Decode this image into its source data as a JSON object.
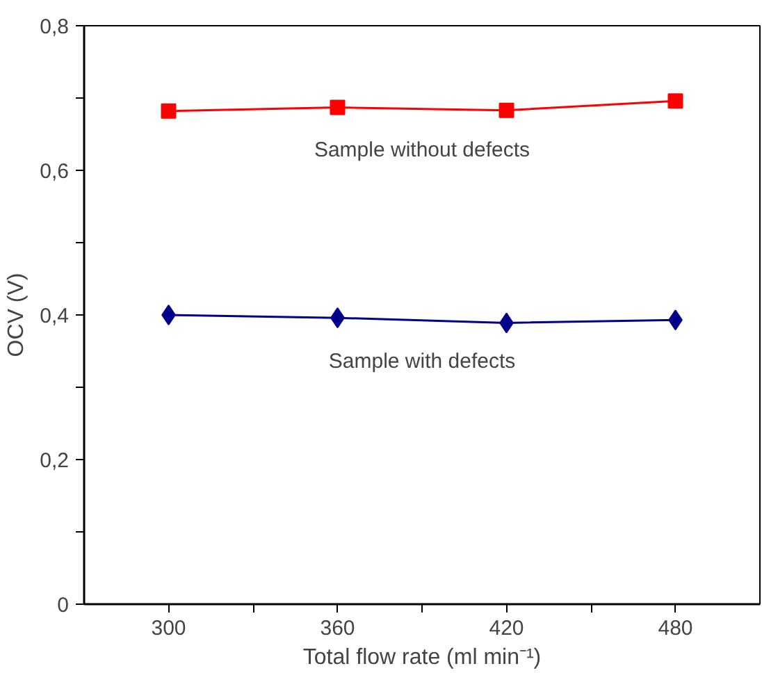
{
  "chart_data": {
    "type": "line",
    "xlabel": "Total flow rate (ml min⁻¹)",
    "ylabel": "OCV (V)",
    "x": [
      300,
      360,
      420,
      480
    ],
    "series": [
      {
        "name": "Sample without defects",
        "color": "#ff0000",
        "marker": "square",
        "values": [
          0.682,
          0.687,
          0.683,
          0.696
        ]
      },
      {
        "name": "Sample with defects",
        "color": "#00008b",
        "marker": "diamond",
        "values": [
          0.4,
          0.396,
          0.389,
          0.393
        ]
      }
    ],
    "xlim": [
      270,
      510
    ],
    "xticks": [
      300,
      {
        "value": 330,
        "label": null
      },
      360,
      {
        "value": 390,
        "label": null
      },
      420,
      {
        "value": 450,
        "label": null
      },
      480
    ],
    "ylim": [
      0,
      0.8
    ],
    "yticks": [
      0,
      {
        "value": 0.1,
        "label": null
      },
      {
        "value": 0.2,
        "label": "0,2"
      },
      {
        "value": 0.3,
        "label": null
      },
      {
        "value": 0.4,
        "label": "0,4"
      },
      {
        "value": 0.5,
        "label": null
      },
      {
        "value": 0.6,
        "label": "0,6"
      },
      {
        "value": 0.7,
        "label": null
      },
      {
        "value": 0.8,
        "label": "0,8"
      }
    ],
    "grid": false,
    "line_style": "solid"
  }
}
